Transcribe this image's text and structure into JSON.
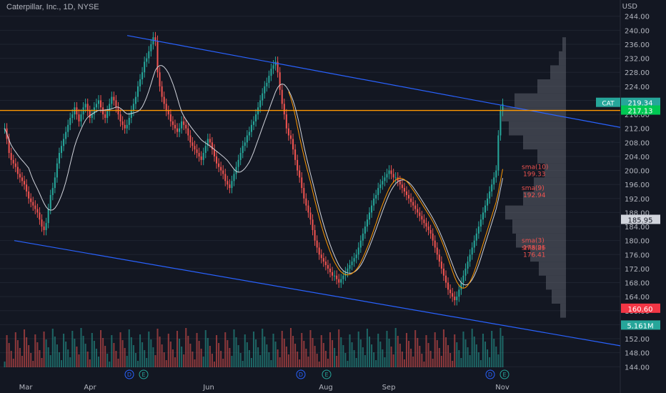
{
  "header": {
    "symbol_line": "Caterpillar, Inc., 1D, NYSE"
  },
  "axis": {
    "currency": "USD"
  },
  "chart_data": {
    "type": "candlestick",
    "symbol": "CAT",
    "interval": "1D",
    "exchange": "NYSE",
    "ylim": [
      141,
      247
    ],
    "y_ticks": [
      144,
      148,
      152,
      156,
      160,
      164,
      168,
      172,
      176,
      180,
      184,
      188,
      192,
      196,
      200,
      204,
      208,
      212,
      216,
      220,
      224,
      228,
      232,
      236,
      240,
      244
    ],
    "x_labels": [
      "Mar",
      "Apr",
      "Jun",
      "Aug",
      "Sep",
      "Nov"
    ],
    "close_series": [
      212,
      209,
      205,
      203,
      202,
      201,
      199,
      198,
      197,
      196,
      194,
      192,
      191,
      190,
      189,
      188,
      186,
      184,
      183,
      185,
      189,
      193,
      195,
      198,
      202,
      205,
      207,
      209,
      211,
      213,
      215,
      216,
      218,
      216,
      214,
      216,
      218,
      219,
      217,
      215,
      216,
      218,
      219,
      220,
      218,
      216,
      215,
      217,
      219,
      221,
      220,
      218,
      216,
      214,
      213,
      212,
      213,
      215,
      217,
      219,
      221,
      224,
      226,
      228,
      231,
      232,
      234,
      236,
      238,
      237,
      228,
      224,
      221,
      219,
      217,
      216,
      214,
      213,
      212,
      211,
      212,
      214,
      213,
      212,
      210,
      208,
      207,
      206,
      205,
      204,
      203,
      205,
      207,
      209,
      208,
      206,
      204,
      202,
      201,
      200,
      199,
      197,
      196,
      195,
      197,
      199,
      201,
      203,
      205,
      207,
      208,
      210,
      211,
      213,
      214,
      216,
      218,
      220,
      222,
      224,
      225,
      227,
      229,
      230,
      231,
      228,
      223,
      219,
      216,
      212,
      210,
      209,
      206,
      203,
      200,
      198,
      195,
      192,
      190,
      188,
      186,
      183,
      180,
      178,
      176,
      175,
      174,
      173,
      172,
      171,
      170,
      170,
      169,
      168,
      169,
      170,
      171,
      172,
      173,
      174,
      175,
      176,
      178,
      180,
      182,
      184,
      186,
      188,
      190,
      192,
      193,
      195,
      196,
      197,
      198,
      199,
      200,
      199,
      198,
      198,
      197,
      196,
      195,
      194,
      193,
      192,
      191,
      190,
      189,
      188,
      187,
      186,
      185,
      184,
      183,
      182,
      180,
      178,
      176,
      174,
      172,
      170,
      168,
      166,
      165,
      164,
      163,
      164,
      166,
      168,
      170,
      172,
      174,
      176,
      178,
      180,
      182,
      184,
      186,
      188,
      190,
      192,
      194,
      196,
      198,
      200,
      210,
      217,
      219
    ],
    "last_price": "219.34",
    "price_labels": [
      {
        "text": "CAT",
        "value": "219.34",
        "color": "#26a69a"
      },
      {
        "value": "217.13",
        "color": "#00c853"
      },
      {
        "value": "185.95",
        "color": "#d1d4dc"
      },
      {
        "value": "160.60",
        "color": "#f23645"
      },
      {
        "value": "5.161M",
        "color": "#26a69a"
      }
    ],
    "sma_labels": [
      {
        "text": "sma(10)",
        "value": "199.33",
        "price": 200
      },
      {
        "text": "sma(9)",
        "value": "192.94",
        "price": 194
      },
      {
        "text": "sma(3)",
        "value": "178.86",
        "price": 179
      },
      {
        "text": "sma(2)",
        "value": "176.41",
        "price": 177
      }
    ],
    "horizontal_levels": [
      217.13,
      185.95,
      160.6
    ],
    "channel": {
      "upper": [
        [
          0,
          238
        ],
        [
          1,
          212
        ]
      ],
      "lower": [
        [
          0,
          180
        ],
        [
          1,
          145
        ]
      ]
    },
    "annotations": [
      "D",
      "E",
      "D",
      "E",
      "D",
      "E"
    ]
  }
}
